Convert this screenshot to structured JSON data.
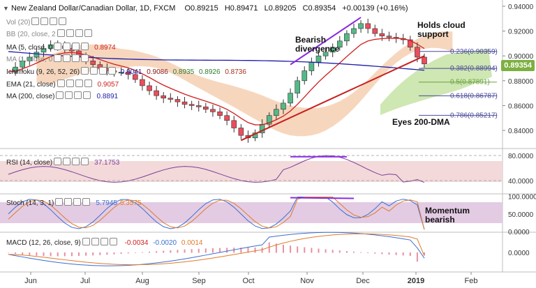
{
  "header": {
    "symbol": "New Zealand Dollar/Canadian Dollar, 1D, FXCM",
    "open": "O0.89215",
    "high": "H0.89471",
    "low": "L0.89205",
    "close": "C0.89354",
    "change": "+0.00139 (+0.16%)"
  },
  "legend": {
    "vol": "Vol (20)",
    "bb": "BB (20, close, 2",
    "ma5": "MA (5, close, 0",
    "ma5_value": "0.8974",
    "ma_hidden": "MA (1, close, 0",
    "ichimoku": "Ichimoku (9, 26, 52, 26)",
    "ichimoku_values": [
      "0.9041",
      "0.9086",
      "0.8935",
      "0.8926",
      "0.8736"
    ],
    "ema": "EMA (21, close)",
    "ema_value": "0.9057",
    "ma200": "MA (200, close)",
    "ma200_value": "0.8891",
    "rsi": "RSI (14, close)",
    "rsi_value": "37.1753",
    "stoch": "Stoch (14, 3, 1)",
    "stoch_k": "5.7945",
    "stoch_d": "5.3575",
    "macd": "MACD (12, 26, close, 9)",
    "macd_values": [
      "-0.0034",
      "-0.0020",
      "0.0014"
    ]
  },
  "annotations": {
    "bearish_divergence": [
      "Bearish",
      "divergence"
    ],
    "holds_cloud": [
      "Holds cloud",
      "support"
    ],
    "eyes_200dma": "Eyes 200-DMA",
    "momentum": [
      "Momentum",
      "bearish"
    ]
  },
  "fib_levels": [
    {
      "label": "0.236(0.90359)",
      "value": 0.90359,
      "color": "#4a4a9a"
    },
    {
      "label": "0.382(0.88994)",
      "value": 0.88994,
      "color": "#4a4a9a"
    },
    {
      "label": "0.5(0.87891)",
      "value": 0.87891,
      "color": "#6aa040"
    },
    {
      "label": "0.618(0.86787)",
      "value": 0.86787,
      "color": "#4a4a9a"
    },
    {
      "label": "0.786(0.85217)",
      "value": 0.85217,
      "color": "#4a4a9a"
    }
  ],
  "price_axis": {
    "ticks": [
      "0.94000",
      "0.92000",
      "0.90000",
      "0.88000",
      "0.86000",
      "0.84000"
    ],
    "ymin": 0.826,
    "ymax": 0.945
  },
  "current_price": "0.89354",
  "rsi_axis": [
    "80.0000",
    "40.0000"
  ],
  "stoch_axis": [
    "100.0000",
    "50.0000",
    "0.0000"
  ],
  "macd_axis": [
    "0.0000"
  ],
  "time_axis": [
    "Jun",
    "Jul",
    "Aug",
    "Sep",
    "Oct",
    "Nov",
    "Dec",
    "2019",
    "Feb"
  ],
  "colors": {
    "up": "#53b987",
    "down": "#eb4d5c",
    "ema": "#d11c1c",
    "ma200": "#1c1caa",
    "cloud": "#f3c9a8",
    "cloud_green": "#c7e3a5",
    "rsi": "#7a3f9a",
    "stoch_k": "#3a6fd0",
    "stoch_d": "#e07a2a",
    "divergence": "#8a2be2"
  },
  "chart_data": {
    "type": "candlestick",
    "title": "New Zealand Dollar/Canadian Dollar, 1D, FXCM",
    "x": [
      "Jun",
      "Jul",
      "Aug",
      "Sep",
      "Oct",
      "Nov",
      "Dec",
      "2019",
      "Feb"
    ],
    "close_path": [
      [
        0,
        0.887
      ],
      [
        1,
        0.891
      ],
      [
        2,
        0.896
      ],
      [
        3,
        0.899
      ],
      [
        4,
        0.903
      ],
      [
        5,
        0.906
      ],
      [
        6,
        0.909
      ],
      [
        7,
        0.908
      ],
      [
        8,
        0.906
      ],
      [
        9,
        0.904
      ],
      [
        10,
        0.9
      ],
      [
        11,
        0.896
      ],
      [
        12,
        0.893
      ],
      [
        13,
        0.89
      ],
      [
        14,
        0.888
      ],
      [
        15,
        0.887
      ],
      [
        16,
        0.887
      ],
      [
        17,
        0.885
      ],
      [
        18,
        0.881
      ],
      [
        19,
        0.876
      ],
      [
        20,
        0.872
      ],
      [
        21,
        0.868
      ],
      [
        22,
        0.866
      ],
      [
        23,
        0.865
      ],
      [
        24,
        0.863
      ],
      [
        25,
        0.861
      ],
      [
        26,
        0.86
      ],
      [
        27,
        0.859
      ],
      [
        28,
        0.857
      ],
      [
        29,
        0.855
      ],
      [
        30,
        0.852
      ],
      [
        31,
        0.848
      ],
      [
        32,
        0.842
      ],
      [
        33,
        0.836
      ],
      [
        34,
        0.834
      ],
      [
        35,
        0.838
      ],
      [
        36,
        0.845
      ],
      [
        37,
        0.852
      ],
      [
        38,
        0.857
      ],
      [
        39,
        0.862
      ],
      [
        40,
        0.87
      ],
      [
        41,
        0.88
      ],
      [
        42,
        0.888
      ],
      [
        43,
        0.895
      ],
      [
        44,
        0.9
      ],
      [
        45,
        0.903
      ],
      [
        46,
        0.907
      ],
      [
        47,
        0.912
      ],
      [
        48,
        0.918
      ],
      [
        49,
        0.922
      ],
      [
        50,
        0.926
      ],
      [
        51,
        0.922
      ],
      [
        52,
        0.918
      ],
      [
        53,
        0.916
      ],
      [
        54,
        0.915
      ],
      [
        55,
        0.914
      ],
      [
        56,
        0.913
      ],
      [
        57,
        0.907
      ],
      [
        58,
        0.899
      ],
      [
        59,
        0.8935
      ]
    ],
    "series": [
      {
        "name": "EMA (21, close)",
        "last": 0.9057
      },
      {
        "name": "MA (200, close)",
        "last": 0.8891
      },
      {
        "name": "RSI (14, close)",
        "last": 37.1753
      },
      {
        "name": "Stoch %K",
        "last": 5.7945
      },
      {
        "name": "Stoch %D",
        "last": 5.3575
      },
      {
        "name": "MACD",
        "last": -0.0034
      }
    ],
    "ylim": [
      0.826,
      0.945
    ]
  }
}
